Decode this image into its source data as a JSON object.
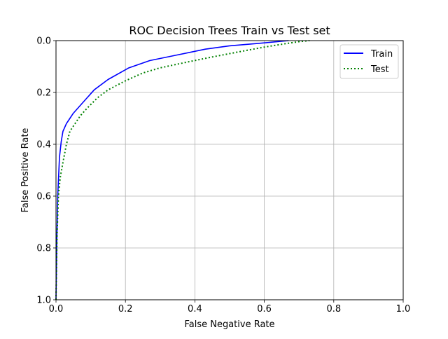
{
  "chart_data": {
    "type": "line",
    "title": "ROC Decision Trees Train vs Test set",
    "xlabel": "False Negative Rate",
    "ylabel": "False Positive Rate",
    "xlim": [
      0.0,
      1.0
    ],
    "ylim": [
      1.0,
      0.0
    ],
    "y_axis_inverted": true,
    "xticks": [
      "0.0",
      "0.2",
      "0.4",
      "0.6",
      "0.8",
      "1.0"
    ],
    "yticks": [
      "0.0",
      "0.2",
      "0.4",
      "0.6",
      "0.8",
      "1.0"
    ],
    "grid": true,
    "legend_position": "top-right",
    "series": [
      {
        "name": "Train",
        "color": "#0000ff",
        "style": "solid",
        "x": [
          0.0,
          0.002,
          0.005,
          0.01,
          0.015,
          0.02,
          0.03,
          0.04,
          0.05,
          0.07,
          0.09,
          0.11,
          0.15,
          0.21,
          0.27,
          0.35,
          0.43,
          0.5,
          0.58,
          0.63,
          0.67
        ],
        "y": [
          1.0,
          0.8,
          0.6,
          0.45,
          0.39,
          0.35,
          0.32,
          0.3,
          0.28,
          0.25,
          0.22,
          0.19,
          0.15,
          0.105,
          0.077,
          0.055,
          0.033,
          0.02,
          0.011,
          0.005,
          0.0
        ]
      },
      {
        "name": "Test",
        "color": "#008000",
        "style": "dotted",
        "x": [
          0.0,
          0.003,
          0.007,
          0.012,
          0.02,
          0.03,
          0.04,
          0.05,
          0.07,
          0.09,
          0.12,
          0.15,
          0.2,
          0.25,
          0.3,
          0.37,
          0.45,
          0.52,
          0.6,
          0.66,
          0.7,
          0.73
        ],
        "y": [
          1.0,
          0.75,
          0.6,
          0.53,
          0.47,
          0.4,
          0.35,
          0.33,
          0.29,
          0.26,
          0.22,
          0.19,
          0.155,
          0.125,
          0.105,
          0.085,
          0.063,
          0.045,
          0.025,
          0.012,
          0.004,
          0.0
        ]
      }
    ]
  }
}
